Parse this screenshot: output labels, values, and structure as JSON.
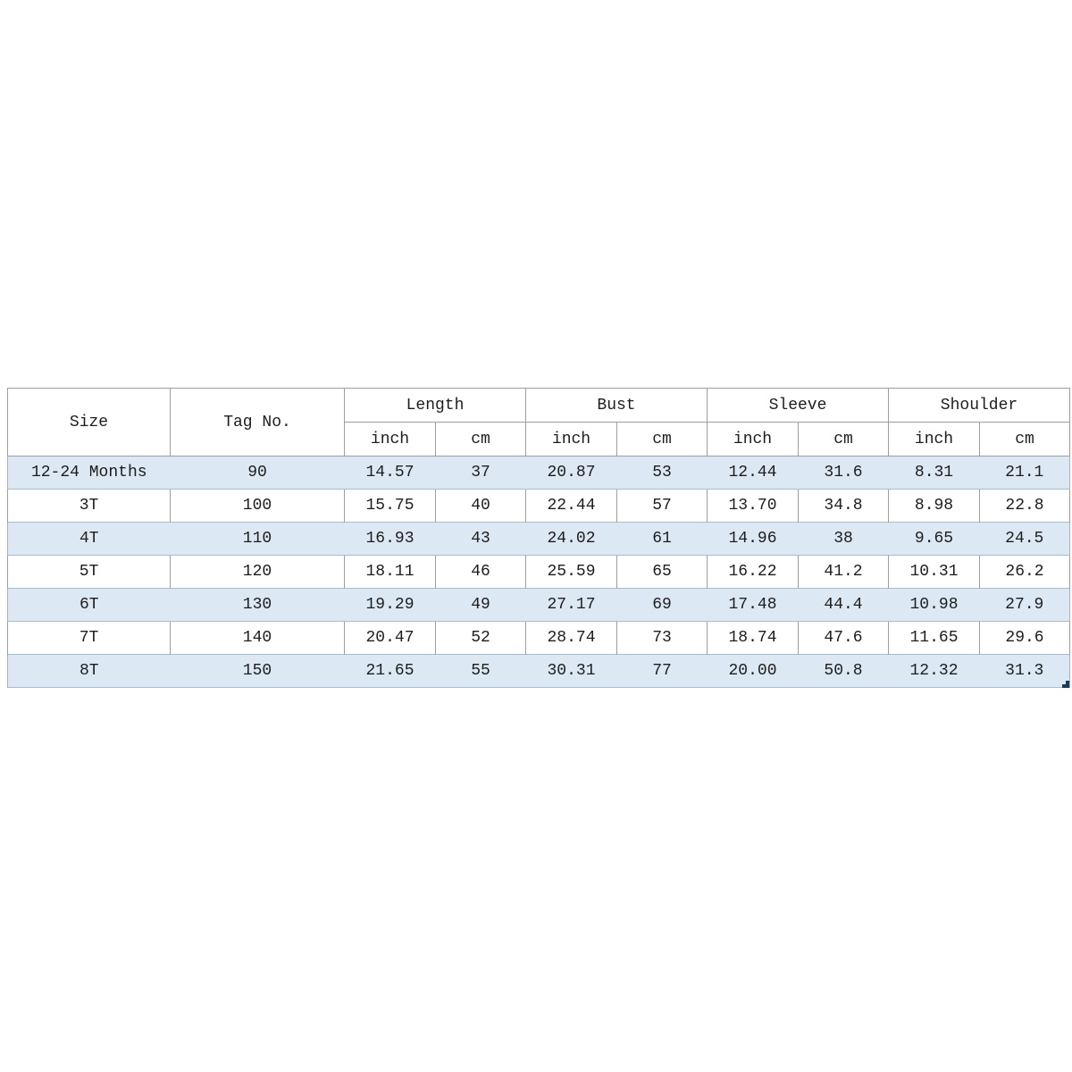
{
  "chart_data": {
    "type": "table",
    "description": "Children clothing size chart",
    "header": {
      "size_label": "Size",
      "tag_label": "Tag No.",
      "groups": [
        "Length",
        "Bust",
        "Sleeve",
        "Shoulder"
      ],
      "unit_inch": "inch",
      "unit_cm": "cm"
    },
    "columns": [
      "Size",
      "Tag No.",
      "Length inch",
      "Length cm",
      "Bust inch",
      "Bust cm",
      "Sleeve inch",
      "Sleeve cm",
      "Shoulder inch",
      "Shoulder cm"
    ],
    "rows": [
      [
        "12-24 Months",
        "90",
        "14.57",
        "37",
        "20.87",
        "53",
        "12.44",
        "31.6",
        "8.31",
        "21.1"
      ],
      [
        "3T",
        "100",
        "15.75",
        "40",
        "22.44",
        "57",
        "13.70",
        "34.8",
        "8.98",
        "22.8"
      ],
      [
        "4T",
        "110",
        "16.93",
        "43",
        "24.02",
        "61",
        "14.96",
        "38",
        "9.65",
        "24.5"
      ],
      [
        "5T",
        "120",
        "18.11",
        "46",
        "25.59",
        "65",
        "16.22",
        "41.2",
        "10.31",
        "26.2"
      ],
      [
        "6T",
        "130",
        "19.29",
        "49",
        "27.17",
        "69",
        "17.48",
        "44.4",
        "10.98",
        "27.9"
      ],
      [
        "7T",
        "140",
        "20.47",
        "52",
        "28.74",
        "73",
        "18.74",
        "47.6",
        "11.65",
        "29.6"
      ],
      [
        "8T",
        "150",
        "21.65",
        "55",
        "30.31",
        "77",
        "20.00",
        "50.8",
        "12.32",
        "31.3"
      ]
    ]
  },
  "colors": {
    "background": "#ffffff",
    "stripe_fill": "#dce8f4",
    "stripe_edge": "#a7bccf",
    "grid_line": "#9e9e9e",
    "text": "#1d1d1d",
    "selection_handle": "#1b3a5c"
  }
}
